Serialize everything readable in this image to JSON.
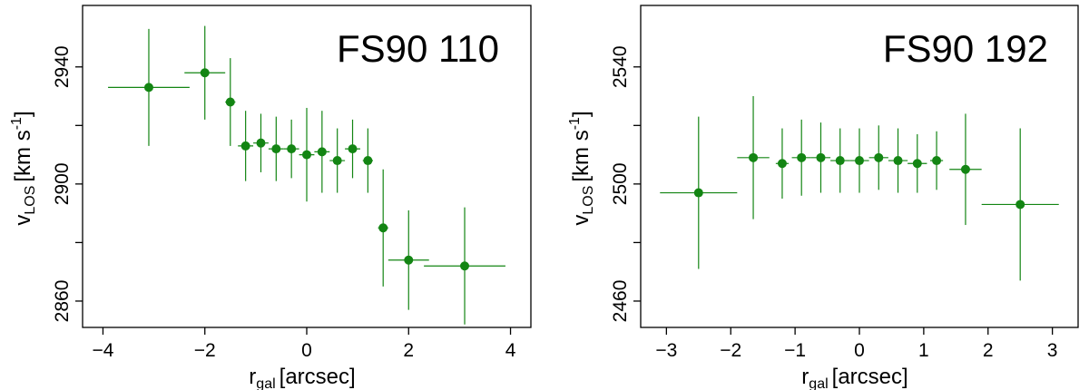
{
  "chart_data": [
    {
      "type": "scatter",
      "title": "FS90 110",
      "xlabel_main": "r",
      "xlabel_sub": "gal",
      "xlabel_unit": "[arcsec]",
      "ylabel_main": "v",
      "ylabel_sub": "LOS",
      "ylabel_unit": "[km s",
      "ylabel_exp": "-1",
      "ylabel_close": "]",
      "xlim": [
        -4.4,
        4.4
      ],
      "ylim": [
        2851,
        2961
      ],
      "xticks": [
        -4,
        -2,
        0,
        2,
        4
      ],
      "xtick_labels": [
        "−4",
        "−2",
        "0",
        "2",
        "4"
      ],
      "yticks": [
        2860,
        2880,
        2900,
        2920,
        2940
      ],
      "ytick_labels": [
        "2860",
        "",
        "2900",
        "",
        "2940"
      ],
      "marker_color": "#138513",
      "points": [
        {
          "x": -3.1,
          "y": 2933,
          "xerr": 0.8,
          "yerr": 20
        },
        {
          "x": -2.0,
          "y": 2938,
          "xerr": 0.4,
          "yerr": 16
        },
        {
          "x": -1.5,
          "y": 2928,
          "xerr": 0.1,
          "yerr": 15
        },
        {
          "x": -1.2,
          "y": 2913,
          "xerr": 0.15,
          "yerr": 12
        },
        {
          "x": -0.9,
          "y": 2914,
          "xerr": 0.15,
          "yerr": 10
        },
        {
          "x": -0.6,
          "y": 2912,
          "xerr": 0.15,
          "yerr": 11
        },
        {
          "x": -0.3,
          "y": 2912,
          "xerr": 0.15,
          "yerr": 10
        },
        {
          "x": 0.0,
          "y": 2910,
          "xerr": 0.15,
          "yerr": 16
        },
        {
          "x": 0.3,
          "y": 2911,
          "xerr": 0.15,
          "yerr": 14
        },
        {
          "x": 0.6,
          "y": 2908,
          "xerr": 0.15,
          "yerr": 11
        },
        {
          "x": 0.9,
          "y": 2912,
          "xerr": 0.15,
          "yerr": 10
        },
        {
          "x": 1.2,
          "y": 2908,
          "xerr": 0.1,
          "yerr": 11
        },
        {
          "x": 1.5,
          "y": 2885,
          "xerr": 0.1,
          "yerr": 20
        },
        {
          "x": 2.0,
          "y": 2874,
          "xerr": 0.4,
          "yerr": 17
        },
        {
          "x": 3.1,
          "y": 2872,
          "xerr": 0.8,
          "yerr": 20
        }
      ]
    },
    {
      "type": "scatter",
      "title": "FS90 192",
      "xlabel_main": "r",
      "xlabel_sub": "gal",
      "xlabel_unit": "[arcsec]",
      "ylabel_main": "v",
      "ylabel_sub": "LOS",
      "ylabel_unit": "[km s",
      "ylabel_exp": "-1",
      "ylabel_close": "]",
      "xlim": [
        -3.4,
        3.4
      ],
      "ylim": [
        2451,
        2561
      ],
      "xticks": [
        -3,
        -2,
        -1,
        0,
        1,
        2,
        3
      ],
      "xtick_labels": [
        "−3",
        "−2",
        "−1",
        "0",
        "1",
        "2",
        "3"
      ],
      "yticks": [
        2460,
        2480,
        2500,
        2520,
        2540
      ],
      "ytick_labels": [
        "2460",
        "",
        "2500",
        "",
        "2540"
      ],
      "marker_color": "#138513",
      "points": [
        {
          "x": -2.5,
          "y": 2497,
          "xerr": 0.6,
          "yerr": 26
        },
        {
          "x": -1.65,
          "y": 2509,
          "xerr": 0.25,
          "yerr": 21
        },
        {
          "x": -1.2,
          "y": 2507,
          "xerr": 0.1,
          "yerr": 12
        },
        {
          "x": -0.9,
          "y": 2509,
          "xerr": 0.15,
          "yerr": 13
        },
        {
          "x": -0.6,
          "y": 2509,
          "xerr": 0.15,
          "yerr": 12
        },
        {
          "x": -0.3,
          "y": 2508,
          "xerr": 0.15,
          "yerr": 11
        },
        {
          "x": 0.0,
          "y": 2508,
          "xerr": 0.15,
          "yerr": 11
        },
        {
          "x": 0.3,
          "y": 2509,
          "xerr": 0.15,
          "yerr": 11
        },
        {
          "x": 0.6,
          "y": 2508,
          "xerr": 0.15,
          "yerr": 11
        },
        {
          "x": 0.9,
          "y": 2507,
          "xerr": 0.15,
          "yerr": 10
        },
        {
          "x": 1.2,
          "y": 2508,
          "xerr": 0.1,
          "yerr": 10
        },
        {
          "x": 1.65,
          "y": 2505,
          "xerr": 0.25,
          "yerr": 19
        },
        {
          "x": 2.5,
          "y": 2493,
          "xerr": 0.6,
          "yerr": 26
        }
      ]
    }
  ]
}
